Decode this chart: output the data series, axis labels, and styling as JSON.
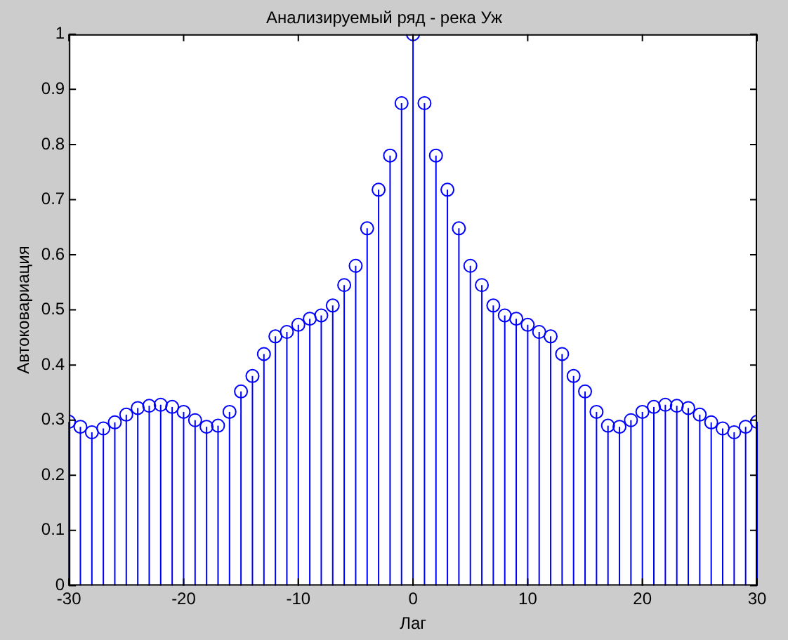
{
  "chart_data": {
    "type": "lollipop",
    "title": "Анализируемый ряд - река Уж",
    "xlabel": "Лаг",
    "ylabel": "Автоковариация",
    "x": [
      -30,
      -29,
      -28,
      -27,
      -26,
      -25,
      -24,
      -23,
      -22,
      -21,
      -20,
      -19,
      -18,
      -17,
      -16,
      -15,
      -14,
      -13,
      -12,
      -11,
      -10,
      -9,
      -8,
      -7,
      -6,
      -5,
      -4,
      -3,
      -2,
      -1,
      0,
      1,
      2,
      3,
      4,
      5,
      6,
      7,
      8,
      9,
      10,
      11,
      12,
      13,
      14,
      15,
      16,
      17,
      18,
      19,
      20,
      21,
      22,
      23,
      24,
      25,
      26,
      27,
      28,
      29,
      30
    ],
    "series": [
      {
        "color": "#0000ff",
        "values": [
          0.297,
          0.288,
          0.278,
          0.285,
          0.296,
          0.31,
          0.322,
          0.326,
          0.328,
          0.324,
          0.315,
          0.3,
          0.288,
          0.29,
          0.315,
          0.352,
          0.38,
          0.42,
          0.452,
          0.46,
          0.473,
          0.484,
          0.49,
          0.508,
          0.545,
          0.58,
          0.648,
          0.718,
          0.78,
          0.875,
          1.0,
          0.875,
          0.78,
          0.718,
          0.648,
          0.58,
          0.545,
          0.508,
          0.49,
          0.484,
          0.473,
          0.46,
          0.452,
          0.42,
          0.38,
          0.352,
          0.315,
          0.29,
          0.288,
          0.3,
          0.315,
          0.324,
          0.328,
          0.326,
          0.322,
          0.31,
          0.296,
          0.285,
          0.278,
          0.288,
          0.297
        ]
      }
    ],
    "xlim": [
      -30,
      30
    ],
    "xticks": [
      -30,
      -20,
      -10,
      0,
      10,
      20,
      30
    ],
    "ylim": [
      0,
      1
    ],
    "yticks": [
      0,
      0.1,
      0.2,
      0.3,
      0.4,
      0.5,
      0.6,
      0.7,
      0.8,
      0.9,
      1
    ],
    "marker": "circle",
    "grid": false,
    "legend": false
  }
}
